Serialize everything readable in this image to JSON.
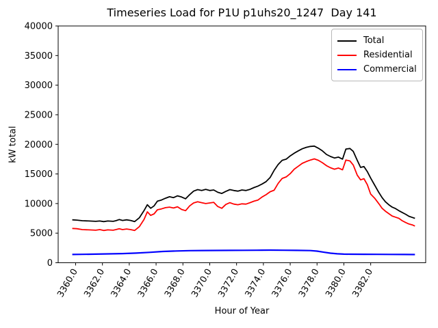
{
  "chart_data": {
    "type": "line",
    "title": "Timeseries Load for P1U p1uhs20_1247  Day 141",
    "xlabel": "Hour of Year",
    "ylabel": "kW total",
    "xlim": [
      3358.7,
      3386.1
    ],
    "ylim": [
      0,
      40000
    ],
    "yticks": [
      0,
      5000,
      10000,
      15000,
      20000,
      25000,
      30000,
      35000,
      40000
    ],
    "xticks": [
      3360.0,
      3362.0,
      3364.0,
      3366.0,
      3368.0,
      3370.0,
      3372.0,
      3374.0,
      3376.0,
      3378.0,
      3380.0,
      3382.0
    ],
    "xtick_rotation_deg": 60,
    "grid": false,
    "legend": {
      "position": "upper right"
    },
    "series": [
      {
        "name": "Total",
        "color": "#000000",
        "line_width": 1.8,
        "points": [
          [
            3359.75,
            7250
          ],
          [
            3360.1,
            7200
          ],
          [
            3360.5,
            7100
          ],
          [
            3361.0,
            7050
          ],
          [
            3361.5,
            7000
          ],
          [
            3361.8,
            7050
          ],
          [
            3362.1,
            6950
          ],
          [
            3362.4,
            7050
          ],
          [
            3362.8,
            7000
          ],
          [
            3363.0,
            7100
          ],
          [
            3363.25,
            7300
          ],
          [
            3363.5,
            7150
          ],
          [
            3363.8,
            7250
          ],
          [
            3364.1,
            7150
          ],
          [
            3364.4,
            6950
          ],
          [
            3364.75,
            7600
          ],
          [
            3365.1,
            8800
          ],
          [
            3365.35,
            9800
          ],
          [
            3365.6,
            9200
          ],
          [
            3365.85,
            9600
          ],
          [
            3366.1,
            10400
          ],
          [
            3366.4,
            10600
          ],
          [
            3366.7,
            10900
          ],
          [
            3367.0,
            11150
          ],
          [
            3367.3,
            11000
          ],
          [
            3367.6,
            11300
          ],
          [
            3367.9,
            11100
          ],
          [
            3368.2,
            10800
          ],
          [
            3368.5,
            11500
          ],
          [
            3368.8,
            12100
          ],
          [
            3369.1,
            12350
          ],
          [
            3369.4,
            12200
          ],
          [
            3369.7,
            12400
          ],
          [
            3370.0,
            12200
          ],
          [
            3370.3,
            12300
          ],
          [
            3370.6,
            11900
          ],
          [
            3370.9,
            11700
          ],
          [
            3371.2,
            12050
          ],
          [
            3371.5,
            12350
          ],
          [
            3371.8,
            12200
          ],
          [
            3372.1,
            12100
          ],
          [
            3372.4,
            12300
          ],
          [
            3372.7,
            12200
          ],
          [
            3373.0,
            12400
          ],
          [
            3373.3,
            12700
          ],
          [
            3373.6,
            12950
          ],
          [
            3373.9,
            13300
          ],
          [
            3374.2,
            13700
          ],
          [
            3374.5,
            14400
          ],
          [
            3374.8,
            15600
          ],
          [
            3375.1,
            16600
          ],
          [
            3375.4,
            17300
          ],
          [
            3375.7,
            17500
          ],
          [
            3376.0,
            18050
          ],
          [
            3376.3,
            18500
          ],
          [
            3376.6,
            18900
          ],
          [
            3376.9,
            19250
          ],
          [
            3377.2,
            19500
          ],
          [
            3377.5,
            19650
          ],
          [
            3377.8,
            19700
          ],
          [
            3378.1,
            19350
          ],
          [
            3378.4,
            18900
          ],
          [
            3378.7,
            18300
          ],
          [
            3379.0,
            17950
          ],
          [
            3379.3,
            17700
          ],
          [
            3379.6,
            17850
          ],
          [
            3379.9,
            17500
          ],
          [
            3380.15,
            19200
          ],
          [
            3380.45,
            19300
          ],
          [
            3380.7,
            18800
          ],
          [
            3381.0,
            17300
          ],
          [
            3381.25,
            16100
          ],
          [
            3381.5,
            16250
          ],
          [
            3381.75,
            15400
          ],
          [
            3382.0,
            14300
          ],
          [
            3382.3,
            13100
          ],
          [
            3382.6,
            11900
          ],
          [
            3382.85,
            11000
          ],
          [
            3383.1,
            10300
          ],
          [
            3383.35,
            9800
          ],
          [
            3383.6,
            9400
          ],
          [
            3383.85,
            9150
          ],
          [
            3384.1,
            8800
          ],
          [
            3384.35,
            8500
          ],
          [
            3384.6,
            8200
          ],
          [
            3384.85,
            7850
          ],
          [
            3385.1,
            7650
          ],
          [
            3385.3,
            7500
          ]
        ]
      },
      {
        "name": "Residential",
        "color": "#ff0000",
        "line_width": 1.8,
        "points": [
          [
            3359.75,
            5800
          ],
          [
            3360.1,
            5750
          ],
          [
            3360.5,
            5600
          ],
          [
            3361.0,
            5550
          ],
          [
            3361.5,
            5500
          ],
          [
            3361.8,
            5600
          ],
          [
            3362.1,
            5450
          ],
          [
            3362.4,
            5550
          ],
          [
            3362.8,
            5500
          ],
          [
            3363.0,
            5600
          ],
          [
            3363.25,
            5750
          ],
          [
            3363.5,
            5600
          ],
          [
            3363.8,
            5700
          ],
          [
            3364.1,
            5600
          ],
          [
            3364.4,
            5450
          ],
          [
            3364.75,
            6100
          ],
          [
            3365.1,
            7300
          ],
          [
            3365.35,
            8600
          ],
          [
            3365.6,
            8000
          ],
          [
            3365.85,
            8250
          ],
          [
            3366.1,
            8950
          ],
          [
            3366.4,
            9100
          ],
          [
            3366.7,
            9300
          ],
          [
            3367.0,
            9400
          ],
          [
            3367.3,
            9250
          ],
          [
            3367.6,
            9450
          ],
          [
            3367.9,
            9000
          ],
          [
            3368.2,
            8800
          ],
          [
            3368.5,
            9600
          ],
          [
            3368.8,
            10100
          ],
          [
            3369.1,
            10300
          ],
          [
            3369.4,
            10150
          ],
          [
            3369.7,
            10000
          ],
          [
            3370.0,
            10100
          ],
          [
            3370.3,
            10200
          ],
          [
            3370.6,
            9500
          ],
          [
            3370.9,
            9200
          ],
          [
            3371.2,
            9850
          ],
          [
            3371.5,
            10150
          ],
          [
            3371.8,
            9900
          ],
          [
            3372.1,
            9800
          ],
          [
            3372.4,
            9950
          ],
          [
            3372.7,
            9900
          ],
          [
            3373.0,
            10150
          ],
          [
            3373.3,
            10400
          ],
          [
            3373.6,
            10600
          ],
          [
            3373.9,
            11100
          ],
          [
            3374.2,
            11500
          ],
          [
            3374.5,
            12000
          ],
          [
            3374.8,
            12250
          ],
          [
            3375.1,
            13400
          ],
          [
            3375.4,
            14250
          ],
          [
            3375.7,
            14500
          ],
          [
            3376.0,
            15050
          ],
          [
            3376.3,
            15800
          ],
          [
            3376.6,
            16300
          ],
          [
            3376.9,
            16800
          ],
          [
            3377.2,
            17100
          ],
          [
            3377.5,
            17350
          ],
          [
            3377.8,
            17550
          ],
          [
            3378.1,
            17300
          ],
          [
            3378.4,
            16900
          ],
          [
            3378.7,
            16400
          ],
          [
            3379.0,
            16050
          ],
          [
            3379.3,
            15800
          ],
          [
            3379.6,
            16000
          ],
          [
            3379.9,
            15700
          ],
          [
            3380.15,
            17350
          ],
          [
            3380.45,
            17200
          ],
          [
            3380.7,
            16500
          ],
          [
            3381.0,
            14800
          ],
          [
            3381.25,
            14000
          ],
          [
            3381.5,
            14200
          ],
          [
            3381.75,
            13200
          ],
          [
            3382.0,
            11600
          ],
          [
            3382.3,
            10900
          ],
          [
            3382.6,
            10000
          ],
          [
            3382.85,
            9200
          ],
          [
            3383.1,
            8700
          ],
          [
            3383.35,
            8300
          ],
          [
            3383.6,
            7900
          ],
          [
            3383.85,
            7700
          ],
          [
            3384.1,
            7500
          ],
          [
            3384.35,
            7100
          ],
          [
            3384.6,
            6800
          ],
          [
            3384.85,
            6550
          ],
          [
            3385.1,
            6400
          ],
          [
            3385.3,
            6200
          ]
        ]
      },
      {
        "name": "Commercial",
        "color": "#0000ff",
        "line_width": 2.2,
        "points": [
          [
            3359.75,
            1400
          ],
          [
            3360.5,
            1420
          ],
          [
            3361.5,
            1450
          ],
          [
            3362.5,
            1500
          ],
          [
            3363.5,
            1550
          ],
          [
            3364.5,
            1630
          ],
          [
            3365.5,
            1760
          ],
          [
            3366.5,
            1900
          ],
          [
            3367.5,
            1990
          ],
          [
            3368.5,
            2040
          ],
          [
            3369.5,
            2070
          ],
          [
            3370.5,
            2080
          ],
          [
            3371.5,
            2090
          ],
          [
            3372.5,
            2100
          ],
          [
            3373.5,
            2110
          ],
          [
            3374.5,
            2130
          ],
          [
            3375.5,
            2110
          ],
          [
            3376.5,
            2090
          ],
          [
            3377.5,
            2050
          ],
          [
            3378.0,
            1960
          ],
          [
            3378.5,
            1780
          ],
          [
            3379.0,
            1620
          ],
          [
            3379.5,
            1510
          ],
          [
            3380.0,
            1460
          ],
          [
            3380.5,
            1440
          ],
          [
            3381.5,
            1430
          ],
          [
            3382.5,
            1420
          ],
          [
            3383.5,
            1410
          ],
          [
            3384.5,
            1400
          ],
          [
            3385.3,
            1380
          ]
        ]
      }
    ]
  }
}
